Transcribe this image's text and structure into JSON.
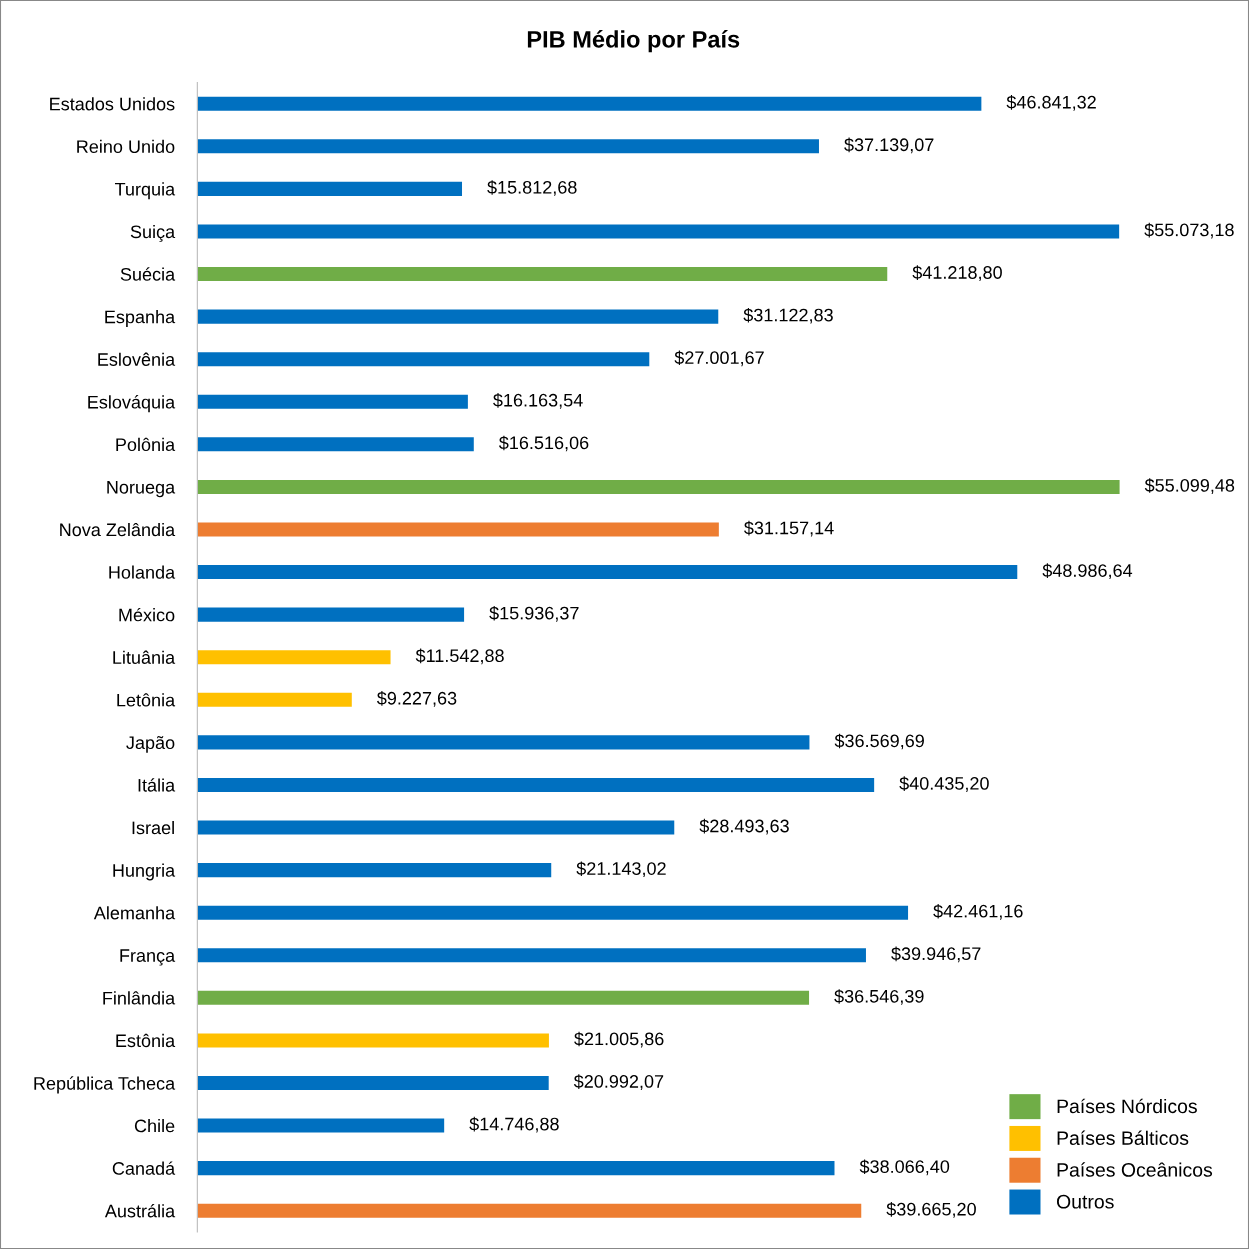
{
  "chart_data": {
    "type": "bar",
    "orientation": "horizontal",
    "stacked": true,
    "title": "PIB Médio por País",
    "categories": [
      "Estados Unidos",
      "Reino Unido",
      "Turquia",
      "Suiça",
      "Suécia",
      "Espanha",
      "Eslovênia",
      "Eslováquia",
      "Polônia",
      "Noruega",
      "Nova Zelândia",
      "Holanda",
      "México",
      "Lituânia",
      "Letônia",
      "Japão",
      "Itália",
      "Israel",
      "Hungria",
      "Alemanha",
      "França",
      "Finlândia",
      "Estônia",
      "República Tcheca",
      "Chile",
      "Canadá",
      "Austrália"
    ],
    "series": [
      {
        "name": "Países Nórdicos",
        "color": "#70ad47",
        "values": [
          null,
          null,
          null,
          null,
          41218.8,
          null,
          null,
          null,
          null,
          55099.48,
          null,
          null,
          null,
          null,
          null,
          null,
          null,
          null,
          null,
          null,
          null,
          36546.39,
          null,
          null,
          null,
          null,
          null
        ],
        "value_labels": [
          null,
          null,
          null,
          null,
          "$41.218,80",
          null,
          null,
          null,
          null,
          "$55.099,48",
          null,
          null,
          null,
          null,
          null,
          null,
          null,
          null,
          null,
          null,
          null,
          "$36.546,39",
          null,
          null,
          null,
          null,
          null
        ]
      },
      {
        "name": "Países Bálticos",
        "color": "#ffc000",
        "values": [
          null,
          null,
          null,
          null,
          null,
          null,
          null,
          null,
          null,
          null,
          null,
          null,
          null,
          11542.88,
          9227.63,
          null,
          null,
          null,
          null,
          null,
          null,
          null,
          21005.86,
          null,
          null,
          null,
          null
        ],
        "value_labels": [
          null,
          null,
          null,
          null,
          null,
          null,
          null,
          null,
          null,
          null,
          null,
          null,
          null,
          "$11.542,88",
          "$9.227,63",
          null,
          null,
          null,
          null,
          null,
          null,
          null,
          "$21.005,86",
          null,
          null,
          null,
          null
        ]
      },
      {
        "name": "Países Oceânicos",
        "color": "#ed7d31",
        "values": [
          null,
          null,
          null,
          null,
          null,
          null,
          null,
          null,
          null,
          null,
          31157.14,
          null,
          null,
          null,
          null,
          null,
          null,
          null,
          null,
          null,
          null,
          null,
          null,
          null,
          null,
          null,
          39665.2
        ],
        "value_labels": [
          null,
          null,
          null,
          null,
          null,
          null,
          null,
          null,
          null,
          null,
          "$31.157,14",
          null,
          null,
          null,
          null,
          null,
          null,
          null,
          null,
          null,
          null,
          null,
          null,
          null,
          null,
          null,
          "$39.665,20"
        ]
      },
      {
        "name": "Outros",
        "color": "#0070c0",
        "values": [
          46841.32,
          37139.07,
          15812.68,
          55073.18,
          null,
          31122.83,
          27001.67,
          16163.54,
          16516.06,
          null,
          null,
          48986.64,
          15936.37,
          null,
          null,
          36569.69,
          40435.2,
          28493.63,
          21143.02,
          42461.16,
          39946.57,
          null,
          null,
          20992.07,
          14746.88,
          38066.4,
          null
        ],
        "value_labels": [
          "$46.841,32",
          "$37.139,07",
          "$15.812,68",
          "$55.073,18",
          null,
          "$31.122,83",
          "$27.001,67",
          "$16.163,54",
          "$16.516,06",
          null,
          null,
          "$48.986,64",
          "$15.936,37",
          null,
          null,
          "$36.569,69",
          "$40.435,20",
          "$28.493,63",
          "$21.143,02",
          "$42.461,16",
          "$39.946,57",
          null,
          null,
          "$20.992,07",
          "$14.746,88",
          "$38.066,40",
          null
        ]
      }
    ],
    "legend": "bottom right"
  }
}
